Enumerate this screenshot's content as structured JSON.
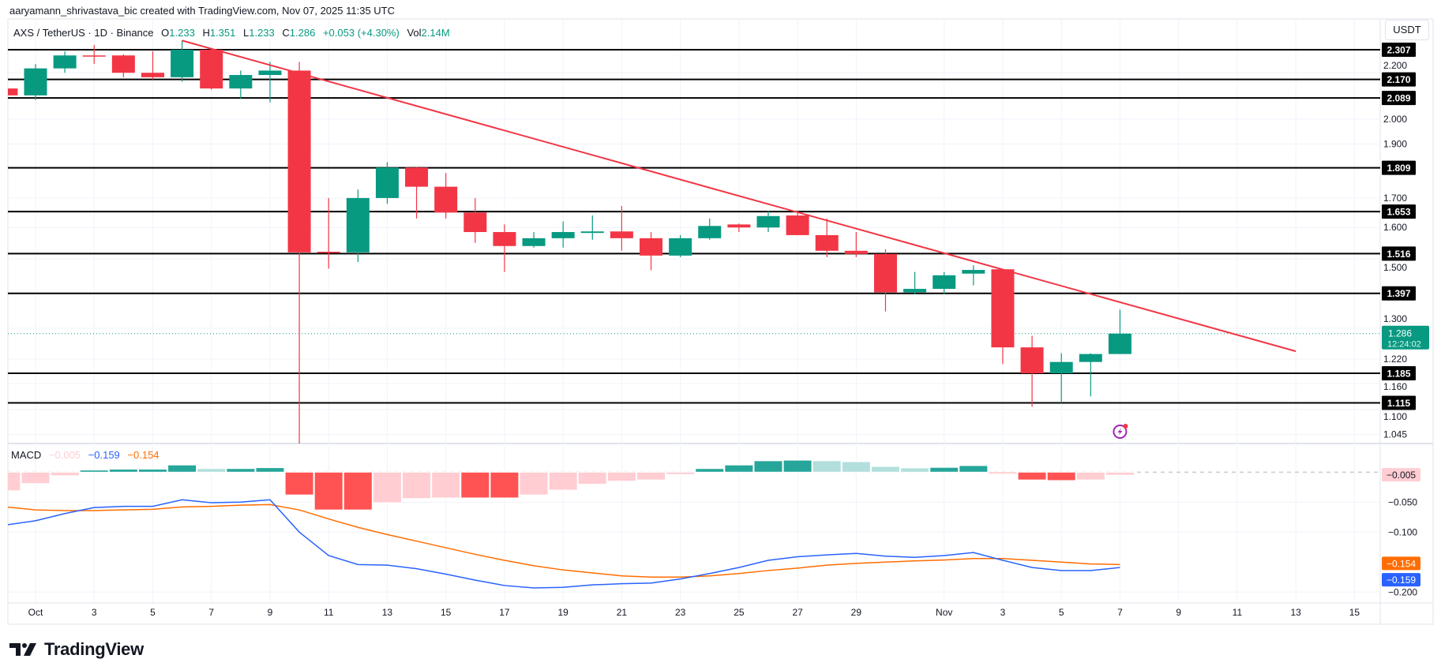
{
  "header": {
    "caption": "aaryamann_shrivastava_bic created with TradingView.com, Nov 07, 2025 11:35 UTC",
    "symbol": "AXS / TetherUS · 1D · Binance",
    "open_label": "O",
    "open": "1.233",
    "high_label": "H",
    "high": "1.351",
    "low_label": "L",
    "low": "1.233",
    "close_label": "C",
    "close": "1.286",
    "change": "+0.053 (+4.30%)",
    "vol_label": "Vol",
    "vol": "2.14M",
    "currency_button": "USDT"
  },
  "macd_legend": {
    "label": "MACD",
    "hist": "−0.005",
    "macd": "−0.159",
    "signal": "−0.154"
  },
  "colors": {
    "up": "#089981",
    "down": "#F23645",
    "trendline": "#F23645",
    "macd": "#2962FF",
    "signal": "#FF6D00",
    "hist_up_strong": "#26A69A",
    "hist_up_weak": "#B2DFDB",
    "hist_down_strong": "#FF5252",
    "hist_down_weak": "#FFCDD2",
    "levels": "#000000",
    "event_icon": "#9C27B0"
  },
  "brand": "TradingView",
  "event_icon": "lightning-event-icon",
  "chart_data": [
    {
      "type": "candlestick",
      "title": "AXS / TetherUS · 1D · Binance",
      "y_scale": "log",
      "ylim": [
        1.0,
        2.36
      ],
      "y_ticks": [
        "2.200",
        "2.000",
        "1.900",
        "1.700",
        "1.600",
        "1.500",
        "1.300",
        "1.220",
        "1.160",
        "1.100",
        "1.045"
      ],
      "x_ticks": [
        "Oct",
        "3",
        "5",
        "7",
        "9",
        "11",
        "13",
        "15",
        "17",
        "19",
        "21",
        "23",
        "25",
        "27",
        "29",
        "Nov",
        "3",
        "5",
        "7",
        "9",
        "11",
        "13",
        "15"
      ],
      "x_tick_dates": [
        "2025-10-01",
        "2025-10-03",
        "2025-10-05",
        "2025-10-07",
        "2025-10-09",
        "2025-10-11",
        "2025-10-13",
        "2025-10-15",
        "2025-10-17",
        "2025-10-19",
        "2025-10-21",
        "2025-10-23",
        "2025-10-25",
        "2025-10-27",
        "2025-10-29",
        "2025-11-01",
        "2025-11-03",
        "2025-11-05",
        "2025-11-07",
        "2025-11-09",
        "2025-11-11",
        "2025-11-13",
        "2025-11-15"
      ],
      "grid": true,
      "candles": [
        {
          "date": "2025-09-30",
          "o": 2.13,
          "h": 2.14,
          "l": 2.09,
          "c": 2.1
        },
        {
          "date": "2025-10-01",
          "o": 2.1,
          "h": 2.24,
          "l": 2.08,
          "c": 2.22
        },
        {
          "date": "2025-10-02",
          "o": 2.22,
          "h": 2.3,
          "l": 2.2,
          "c": 2.28
        },
        {
          "date": "2025-10-03",
          "o": 2.28,
          "h": 2.33,
          "l": 2.24,
          "c": 2.277
        },
        {
          "date": "2025-10-04",
          "o": 2.28,
          "h": 2.285,
          "l": 2.18,
          "c": 2.2
        },
        {
          "date": "2025-10-05",
          "o": 2.2,
          "h": 2.3,
          "l": 2.17,
          "c": 2.18
        },
        {
          "date": "2025-10-06",
          "o": 2.18,
          "h": 2.351,
          "l": 2.16,
          "c": 2.307
        },
        {
          "date": "2025-10-07",
          "o": 2.307,
          "h": 2.31,
          "l": 2.125,
          "c": 2.13
        },
        {
          "date": "2025-10-08",
          "o": 2.13,
          "h": 2.21,
          "l": 2.085,
          "c": 2.19
        },
        {
          "date": "2025-10-09",
          "o": 2.19,
          "h": 2.25,
          "l": 2.07,
          "c": 2.21
        },
        {
          "date": "2025-10-10",
          "o": 2.21,
          "h": 2.25,
          "l": 0.95,
          "c": 1.52
        },
        {
          "date": "2025-10-11",
          "o": 1.522,
          "h": 1.7,
          "l": 1.47,
          "c": 1.518
        },
        {
          "date": "2025-10-12",
          "o": 1.52,
          "h": 1.73,
          "l": 1.49,
          "c": 1.7
        },
        {
          "date": "2025-10-13",
          "o": 1.7,
          "h": 1.83,
          "l": 1.68,
          "c": 1.81
        },
        {
          "date": "2025-10-14",
          "o": 1.81,
          "h": 1.812,
          "l": 1.63,
          "c": 1.74
        },
        {
          "date": "2025-10-15",
          "o": 1.74,
          "h": 1.79,
          "l": 1.63,
          "c": 1.65
        },
        {
          "date": "2025-10-16",
          "o": 1.65,
          "h": 1.7,
          "l": 1.55,
          "c": 1.585
        },
        {
          "date": "2025-10-17",
          "o": 1.585,
          "h": 1.61,
          "l": 1.46,
          "c": 1.54
        },
        {
          "date": "2025-10-18",
          "o": 1.54,
          "h": 1.585,
          "l": 1.535,
          "c": 1.565
        },
        {
          "date": "2025-10-19",
          "o": 1.565,
          "h": 1.62,
          "l": 1.535,
          "c": 1.585
        },
        {
          "date": "2025-10-20",
          "o": 1.582,
          "h": 1.64,
          "l": 1.56,
          "c": 1.587
        },
        {
          "date": "2025-10-21",
          "o": 1.587,
          "h": 1.672,
          "l": 1.525,
          "c": 1.565
        },
        {
          "date": "2025-10-22",
          "o": 1.565,
          "h": 1.585,
          "l": 1.465,
          "c": 1.51
        },
        {
          "date": "2025-10-23",
          "o": 1.51,
          "h": 1.575,
          "l": 1.505,
          "c": 1.565
        },
        {
          "date": "2025-10-24",
          "o": 1.565,
          "h": 1.63,
          "l": 1.56,
          "c": 1.605
        },
        {
          "date": "2025-10-25",
          "o": 1.61,
          "h": 1.613,
          "l": 1.585,
          "c": 1.6
        },
        {
          "date": "2025-10-26",
          "o": 1.6,
          "h": 1.655,
          "l": 1.585,
          "c": 1.638
        },
        {
          "date": "2025-10-27",
          "o": 1.64,
          "h": 1.655,
          "l": 1.575,
          "c": 1.575
        },
        {
          "date": "2025-10-28",
          "o": 1.575,
          "h": 1.63,
          "l": 1.505,
          "c": 1.525
        },
        {
          "date": "2025-10-29",
          "o": 1.525,
          "h": 1.585,
          "l": 1.505,
          "c": 1.515
        },
        {
          "date": "2025-10-30",
          "o": 1.515,
          "h": 1.53,
          "l": 1.346,
          "c": 1.4
        },
        {
          "date": "2025-10-31",
          "o": 1.4,
          "h": 1.46,
          "l": 1.395,
          "c": 1.41
        },
        {
          "date": "2025-11-01",
          "o": 1.41,
          "h": 1.46,
          "l": 1.395,
          "c": 1.45
        },
        {
          "date": "2025-11-02",
          "o": 1.455,
          "h": 1.48,
          "l": 1.42,
          "c": 1.466
        },
        {
          "date": "2025-11-03",
          "o": 1.468,
          "h": 1.47,
          "l": 1.208,
          "c": 1.25
        },
        {
          "date": "2025-11-04",
          "o": 1.25,
          "h": 1.28,
          "l": 1.106,
          "c": 1.185
        },
        {
          "date": "2025-11-05",
          "o": 1.185,
          "h": 1.235,
          "l": 1.115,
          "c": 1.213
        },
        {
          "date": "2025-11-06",
          "o": 1.213,
          "h": 1.235,
          "l": 1.13,
          "c": 1.233
        },
        {
          "date": "2025-11-07",
          "o": 1.233,
          "h": 1.351,
          "l": 1.233,
          "c": 1.286
        }
      ],
      "levels": [
        "2.307",
        "2.170",
        "2.089",
        "1.809",
        "1.653",
        "1.516",
        "1.397",
        "1.185",
        "1.115"
      ],
      "trendline": {
        "start": {
          "date": "2025-10-06",
          "price": 2.351
        },
        "end": {
          "date": "2025-11-13",
          "price": 1.24
        }
      },
      "last_price": {
        "value": "1.286",
        "countdown": "12:24:02"
      }
    },
    {
      "type": "bar+line",
      "title": "MACD",
      "ylim": [
        -0.215,
        0.03
      ],
      "y_ticks": [
        "-0.050",
        "-0.100",
        "-0.200"
      ],
      "tick_labels": [
        "−0.050",
        "−0.100",
        "−0.200"
      ],
      "grid": true,
      "dates": [
        "2025-09-30",
        "2025-10-01",
        "2025-10-02",
        "2025-10-03",
        "2025-10-04",
        "2025-10-05",
        "2025-10-06",
        "2025-10-07",
        "2025-10-08",
        "2025-10-09",
        "2025-10-10",
        "2025-10-11",
        "2025-10-12",
        "2025-10-13",
        "2025-10-14",
        "2025-10-15",
        "2025-10-16",
        "2025-10-17",
        "2025-10-18",
        "2025-10-19",
        "2025-10-20",
        "2025-10-21",
        "2025-10-22",
        "2025-10-23",
        "2025-10-24",
        "2025-10-25",
        "2025-10-26",
        "2025-10-27",
        "2025-10-28",
        "2025-10-29",
        "2025-10-30",
        "2025-10-31",
        "2025-11-01",
        "2025-11-02",
        "2025-11-03",
        "2025-11-04",
        "2025-11-05",
        "2025-11-06",
        "2025-11-07"
      ],
      "histogram": [
        -0.031,
        -0.019,
        -0.006,
        0.0035,
        0.005,
        0.005,
        0.012,
        0.006,
        0.006,
        0.0075,
        -0.038,
        -0.063,
        -0.063,
        -0.051,
        -0.044,
        -0.043,
        -0.043,
        -0.043,
        -0.038,
        -0.03,
        -0.02,
        -0.015,
        -0.013,
        -0.004,
        0.006,
        0.012,
        0.019,
        0.02,
        0.019,
        0.0175,
        0.0095,
        0.007,
        0.008,
        0.011,
        -0.002,
        -0.013,
        -0.014,
        -0.013,
        -0.005
      ],
      "macd": [
        -0.088,
        -0.081,
        -0.069,
        -0.059,
        -0.057,
        -0.057,
        -0.046,
        -0.051,
        -0.05,
        -0.046,
        -0.1,
        -0.139,
        -0.154,
        -0.155,
        -0.161,
        -0.17,
        -0.18,
        -0.189,
        -0.193,
        -0.192,
        -0.188,
        -0.186,
        -0.185,
        -0.178,
        -0.169,
        -0.159,
        -0.147,
        -0.141,
        -0.138,
        -0.1355,
        -0.14,
        -0.142,
        -0.139,
        -0.134,
        -0.147,
        -0.159,
        -0.164,
        -0.164,
        -0.159
      ],
      "signal": [
        -0.058,
        -0.063,
        -0.064,
        -0.064,
        -0.063,
        -0.062,
        -0.058,
        -0.057,
        -0.055,
        -0.054,
        -0.063,
        -0.078,
        -0.092,
        -0.104,
        -0.115,
        -0.126,
        -0.137,
        -0.147,
        -0.156,
        -0.163,
        -0.168,
        -0.173,
        -0.175,
        -0.175,
        -0.173,
        -0.169,
        -0.164,
        -0.16,
        -0.155,
        -0.152,
        -0.15,
        -0.148,
        -0.1465,
        -0.144,
        -0.144,
        -0.147,
        -0.15,
        -0.153,
        -0.154
      ],
      "last_values": {
        "hist": "−0.005",
        "signal": "−0.154",
        "macd": "−0.159"
      }
    }
  ]
}
